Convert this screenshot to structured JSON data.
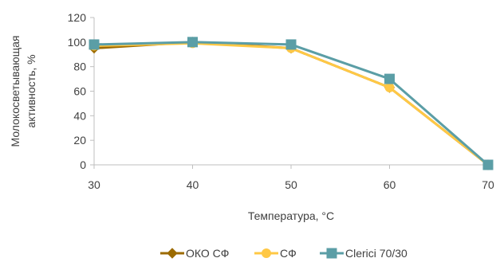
{
  "chart_data": {
    "type": "line",
    "x": [
      30,
      40,
      50,
      60,
      70
    ],
    "xlabel": "Температура, °C",
    "ylabel_lines": [
      "Молокосветывающая",
      "активность, %"
    ],
    "xlim": [
      30,
      70
    ],
    "ylim": [
      0,
      120
    ],
    "xticks": [
      30,
      40,
      50,
      60,
      70
    ],
    "yticks": [
      0,
      20,
      40,
      60,
      80,
      100,
      120
    ],
    "grid": false,
    "legend_position": "bottom",
    "series": [
      {
        "name": "ОКО СФ",
        "values": [
          95,
          100,
          95,
          63,
          0
        ],
        "color": "#9C6B00",
        "marker": "diamond"
      },
      {
        "name": "СФ",
        "values": [
          97,
          99,
          95,
          63,
          0
        ],
        "color": "#FFC845",
        "marker": "circle"
      },
      {
        "name": "Clerici 70/30",
        "values": [
          98,
          100,
          98,
          70,
          0
        ],
        "color": "#5B9EA6",
        "marker": "square"
      }
    ]
  }
}
